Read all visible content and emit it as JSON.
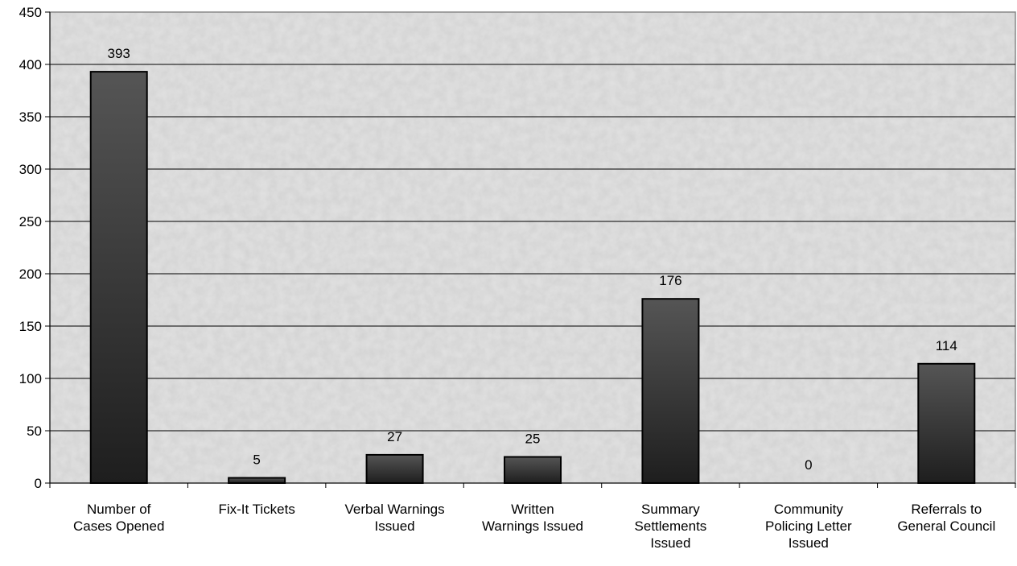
{
  "chart_data": {
    "type": "bar",
    "title": "",
    "xlabel": "",
    "ylabel": "",
    "ylim": [
      0,
      450
    ],
    "yticks": [
      0,
      50,
      100,
      150,
      200,
      250,
      300,
      350,
      400,
      450
    ],
    "grid": true,
    "categories": [
      [
        "Number of",
        "Cases Opened"
      ],
      [
        "Fix-It Tickets"
      ],
      [
        "Verbal Warnings",
        "Issued"
      ],
      [
        "Written",
        "Warnings Issued"
      ],
      [
        "Summary",
        "Settlements",
        "Issued"
      ],
      [
        "Community",
        "Policing Letter",
        "Issued"
      ],
      [
        "Referrals to",
        "General Council"
      ]
    ],
    "values": [
      393,
      5,
      27,
      25,
      176,
      0,
      114
    ],
    "data_labels": [
      "393",
      "5",
      "27",
      "25",
      "176",
      "0",
      "114"
    ],
    "colors": {
      "bar_light": "#555555",
      "bar_dark": "#1e1e1e",
      "bar_stroke": "#000000",
      "plot_bg": "#e2e2e2",
      "grid": "#000000"
    }
  }
}
